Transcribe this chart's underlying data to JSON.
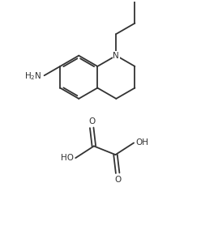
{
  "background_color": "#ffffff",
  "line_color": "#333333",
  "line_width": 1.3,
  "font_size": 7.5,
  "fig_width": 2.69,
  "fig_height": 2.89,
  "dpi": 100,
  "xlim": [
    0,
    10
  ],
  "ylim": [
    0,
    10.7
  ]
}
